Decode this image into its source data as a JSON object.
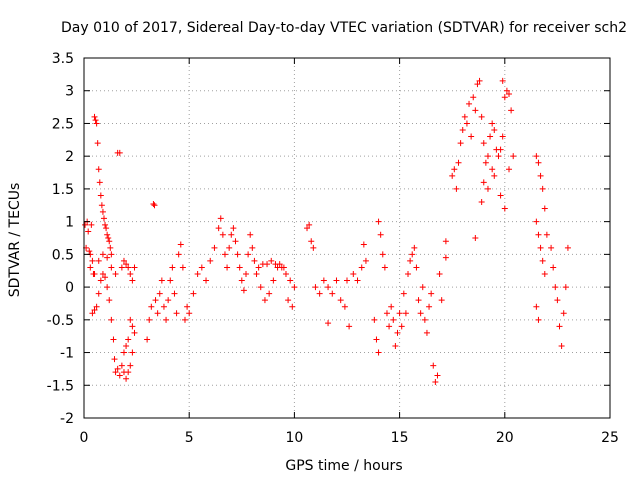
{
  "chart_data": {
    "type": "scatter",
    "title": "Day 010 of 2017, Sidereal Day-to-day VTEC variation (SDTVAR) for receiver sch2",
    "xlabel": "GPS time / hours",
    "ylabel": "SDTVAR / TECUs",
    "xlim": [
      0,
      25
    ],
    "ylim": [
      -2,
      3.5
    ],
    "xticks": [
      0,
      5,
      10,
      15,
      20,
      25
    ],
    "xtick_labels": [
      "0",
      "5",
      "10",
      "15",
      "20",
      "25"
    ],
    "yticks": [
      -2,
      -1.5,
      -1,
      -0.5,
      0,
      0.5,
      1,
      1.5,
      2,
      2.5,
      3,
      3.5
    ],
    "ytick_labels": [
      "-2",
      "-1.5",
      "-1",
      "-0.5",
      "0",
      "0.5",
      "1",
      "1.5",
      "2",
      "2.5",
      "3",
      "3.5"
    ],
    "grid": true,
    "marker": "+",
    "marker_color": "#ff0000",
    "series": [
      {
        "name": "SDTVAR",
        "points": [
          [
            0.05,
            0.95
          ],
          [
            0.1,
            0.6
          ],
          [
            0.15,
            1.0
          ],
          [
            0.2,
            0.85
          ],
          [
            0.25,
            0.55
          ],
          [
            0.3,
            0.5
          ],
          [
            0.35,
            0.95
          ],
          [
            0.4,
            0.4
          ],
          [
            0.45,
            0.2
          ],
          [
            0.5,
            2.6
          ],
          [
            0.55,
            2.55
          ],
          [
            0.6,
            2.5
          ],
          [
            0.65,
            2.2
          ],
          [
            0.7,
            1.8
          ],
          [
            0.75,
            1.6
          ],
          [
            0.8,
            1.4
          ],
          [
            0.85,
            1.25
          ],
          [
            0.9,
            1.15
          ],
          [
            0.95,
            1.05
          ],
          [
            1.0,
            0.95
          ],
          [
            1.05,
            0.9
          ],
          [
            1.1,
            0.8
          ],
          [
            1.15,
            0.75
          ],
          [
            1.2,
            0.7
          ],
          [
            1.25,
            0.6
          ],
          [
            1.3,
            0.5
          ],
          [
            0.4,
            -0.4
          ],
          [
            0.5,
            -0.35
          ],
          [
            0.6,
            -0.3
          ],
          [
            0.7,
            -0.1
          ],
          [
            0.8,
            0.1
          ],
          [
            0.9,
            0.2
          ],
          [
            1.0,
            0.15
          ],
          [
            1.1,
            0.0
          ],
          [
            1.2,
            -0.2
          ],
          [
            1.3,
            -0.5
          ],
          [
            1.4,
            -0.8
          ],
          [
            1.45,
            -1.1
          ],
          [
            1.5,
            -1.3
          ],
          [
            1.6,
            -1.25
          ],
          [
            1.7,
            -1.35
          ],
          [
            1.8,
            -1.2
          ],
          [
            1.9,
            -1.3
          ],
          [
            2.0,
            -1.4
          ],
          [
            2.1,
            -1.3
          ],
          [
            2.2,
            -1.2
          ],
          [
            2.3,
            -1.0
          ],
          [
            2.4,
            -0.7
          ],
          [
            0.3,
            0.3
          ],
          [
            0.5,
            0.2
          ],
          [
            0.7,
            0.4
          ],
          [
            0.9,
            0.5
          ],
          [
            1.1,
            0.45
          ],
          [
            1.3,
            0.3
          ],
          [
            1.5,
            0.2
          ],
          [
            1.6,
            2.05
          ],
          [
            1.7,
            2.05
          ],
          [
            1.8,
            0.3
          ],
          [
            1.9,
            0.4
          ],
          [
            2.0,
            0.35
          ],
          [
            2.1,
            0.3
          ],
          [
            2.2,
            0.2
          ],
          [
            2.3,
            0.1
          ],
          [
            2.4,
            0.3
          ],
          [
            2.2,
            -0.5
          ],
          [
            2.1,
            -0.8
          ],
          [
            2.0,
            -0.9
          ],
          [
            1.9,
            -1.0
          ],
          [
            2.3,
            -0.6
          ],
          [
            3.0,
            -0.8
          ],
          [
            3.1,
            -0.5
          ],
          [
            3.2,
            -0.3
          ],
          [
            3.3,
            1.27
          ],
          [
            3.35,
            1.25
          ],
          [
            3.4,
            -0.2
          ],
          [
            3.5,
            -0.4
          ],
          [
            3.6,
            -0.1
          ],
          [
            3.7,
            0.1
          ],
          [
            3.8,
            -0.3
          ],
          [
            3.9,
            -0.5
          ],
          [
            4.0,
            -0.2
          ],
          [
            4.1,
            0.1
          ],
          [
            4.2,
            0.3
          ],
          [
            4.3,
            -0.1
          ],
          [
            4.4,
            -0.4
          ],
          [
            4.5,
            0.5
          ],
          [
            4.6,
            0.65
          ],
          [
            4.7,
            0.3
          ],
          [
            4.8,
            -0.5
          ],
          [
            4.9,
            -0.3
          ],
          [
            5.0,
            -0.4
          ],
          [
            5.2,
            -0.1
          ],
          [
            5.4,
            0.2
          ],
          [
            5.6,
            0.3
          ],
          [
            5.8,
            0.1
          ],
          [
            6.0,
            0.4
          ],
          [
            6.2,
            0.6
          ],
          [
            6.4,
            0.9
          ],
          [
            6.5,
            1.05
          ],
          [
            6.6,
            0.8
          ],
          [
            6.7,
            0.5
          ],
          [
            6.8,
            0.3
          ],
          [
            6.9,
            0.6
          ],
          [
            7.0,
            0.8
          ],
          [
            7.1,
            0.9
          ],
          [
            7.2,
            0.7
          ],
          [
            7.3,
            0.5
          ],
          [
            7.4,
            0.3
          ],
          [
            7.5,
            0.1
          ],
          [
            7.6,
            -0.05
          ],
          [
            7.7,
            0.2
          ],
          [
            7.8,
            0.5
          ],
          [
            7.9,
            0.8
          ],
          [
            8.0,
            0.6
          ],
          [
            8.1,
            0.4
          ],
          [
            8.2,
            0.2
          ],
          [
            8.4,
            0.0
          ],
          [
            8.6,
            -0.2
          ],
          [
            8.8,
            -0.1
          ],
          [
            9.0,
            0.1
          ],
          [
            9.2,
            0.3
          ],
          [
            9.4,
            0.3
          ],
          [
            9.6,
            0.2
          ],
          [
            9.8,
            0.1
          ],
          [
            10.0,
            0.0
          ],
          [
            8.3,
            0.3
          ],
          [
            8.5,
            0.35
          ],
          [
            8.7,
            0.35
          ],
          [
            8.9,
            0.4
          ],
          [
            9.1,
            0.35
          ],
          [
            9.3,
            0.35
          ],
          [
            9.5,
            0.3
          ],
          [
            9.7,
            -0.2
          ],
          [
            9.9,
            -0.3
          ],
          [
            10.6,
            0.9
          ],
          [
            10.7,
            0.95
          ],
          [
            10.8,
            0.7
          ],
          [
            10.9,
            0.6
          ],
          [
            11.0,
            0.0
          ],
          [
            11.2,
            -0.1
          ],
          [
            11.4,
            0.1
          ],
          [
            11.6,
            0.0
          ],
          [
            11.6,
            -0.55
          ],
          [
            11.8,
            -0.1
          ],
          [
            12.0,
            0.1
          ],
          [
            12.2,
            -0.2
          ],
          [
            12.4,
            -0.3
          ],
          [
            12.5,
            0.1
          ],
          [
            12.6,
            -0.6
          ],
          [
            12.8,
            0.2
          ],
          [
            13.0,
            0.1
          ],
          [
            13.2,
            0.3
          ],
          [
            13.3,
            0.65
          ],
          [
            13.4,
            0.4
          ],
          [
            13.8,
            -0.5
          ],
          [
            13.9,
            -0.8
          ],
          [
            14.0,
            -1.0
          ],
          [
            14.0,
            1.0
          ],
          [
            14.1,
            0.8
          ],
          [
            14.2,
            0.5
          ],
          [
            14.3,
            0.3
          ],
          [
            14.4,
            -0.4
          ],
          [
            14.5,
            -0.6
          ],
          [
            14.6,
            -0.3
          ],
          [
            14.7,
            -0.5
          ],
          [
            14.8,
            -0.9
          ],
          [
            14.9,
            -0.7
          ],
          [
            15.0,
            -0.4
          ],
          [
            15.1,
            -0.6
          ],
          [
            15.2,
            -0.1
          ],
          [
            15.3,
            -0.4
          ],
          [
            15.4,
            0.2
          ],
          [
            15.5,
            0.4
          ],
          [
            15.6,
            0.5
          ],
          [
            15.7,
            0.6
          ],
          [
            15.8,
            0.3
          ],
          [
            15.9,
            -0.2
          ],
          [
            16.0,
            -0.4
          ],
          [
            16.1,
            0.0
          ],
          [
            16.2,
            -0.5
          ],
          [
            16.3,
            -0.7
          ],
          [
            16.4,
            -0.3
          ],
          [
            16.5,
            -0.1
          ],
          [
            16.6,
            -1.2
          ],
          [
            16.7,
            -1.45
          ],
          [
            16.8,
            -1.35
          ],
          [
            16.9,
            0.2
          ],
          [
            17.0,
            -0.2
          ],
          [
            17.2,
            0.45
          ],
          [
            17.2,
            0.7
          ],
          [
            17.5,
            1.7
          ],
          [
            17.6,
            1.8
          ],
          [
            17.7,
            1.5
          ],
          [
            17.8,
            1.9
          ],
          [
            17.9,
            2.2
          ],
          [
            18.0,
            2.4
          ],
          [
            18.1,
            2.6
          ],
          [
            18.2,
            2.5
          ],
          [
            18.3,
            2.8
          ],
          [
            18.4,
            2.3
          ],
          [
            18.5,
            2.9
          ],
          [
            18.6,
            2.7
          ],
          [
            18.7,
            3.1
          ],
          [
            18.8,
            3.15
          ],
          [
            18.9,
            2.6
          ],
          [
            19.0,
            2.2
          ],
          [
            19.1,
            1.9
          ],
          [
            19.2,
            2.0
          ],
          [
            19.3,
            2.3
          ],
          [
            19.4,
            2.5
          ],
          [
            19.5,
            2.4
          ],
          [
            19.6,
            2.1
          ],
          [
            19.7,
            2.0
          ],
          [
            19.8,
            2.1
          ],
          [
            19.9,
            2.3
          ],
          [
            20.0,
            2.9
          ],
          [
            20.1,
            3.0
          ],
          [
            20.2,
            2.95
          ],
          [
            20.3,
            2.7
          ],
          [
            18.6,
            0.75
          ],
          [
            18.9,
            1.3
          ],
          [
            19.2,
            1.5
          ],
          [
            19.5,
            1.7
          ],
          [
            19.8,
            1.4
          ],
          [
            20.0,
            1.2
          ],
          [
            20.2,
            1.8
          ],
          [
            20.4,
            2.0
          ],
          [
            19.0,
            1.6
          ],
          [
            19.4,
            1.8
          ],
          [
            19.9,
            3.15
          ],
          [
            21.5,
            2.0
          ],
          [
            21.6,
            1.9
          ],
          [
            21.7,
            1.7
          ],
          [
            21.8,
            1.5
          ],
          [
            21.9,
            1.2
          ],
          [
            21.5,
            1.0
          ],
          [
            21.6,
            0.8
          ],
          [
            21.7,
            0.6
          ],
          [
            21.8,
            0.4
          ],
          [
            21.9,
            0.2
          ],
          [
            21.5,
            -0.3
          ],
          [
            21.6,
            -0.5
          ],
          [
            22.0,
            0.8
          ],
          [
            22.2,
            0.6
          ],
          [
            22.3,
            0.3
          ],
          [
            22.4,
            0.0
          ],
          [
            22.5,
            -0.2
          ],
          [
            22.6,
            -0.6
          ],
          [
            22.7,
            -0.9
          ],
          [
            22.8,
            -0.4
          ],
          [
            22.9,
            0.0
          ],
          [
            23.0,
            0.6
          ]
        ]
      }
    ]
  }
}
